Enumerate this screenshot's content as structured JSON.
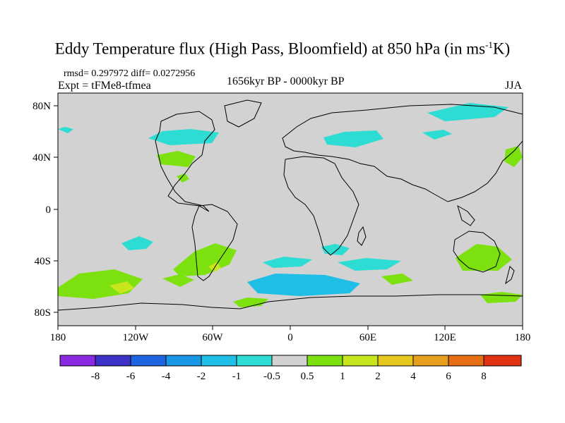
{
  "title": {
    "main": "Eddy Temperature flux (High Pass, Bloomfield) at 850 hPa (in ms",
    "superscript": "-1",
    "unit_tail": "K)"
  },
  "stats_line": "rmsd= 0.297972 diff= 0.0272956",
  "experiment_line": "Expt = tFMe8-tfmea",
  "period": "1656kyr BP - 0000kyr BP",
  "season": "JJA",
  "axes": {
    "lat_labels": [
      "80N",
      "40N",
      "0",
      "40S",
      "80S"
    ],
    "lon_labels": [
      "180",
      "120W",
      "60W",
      "0",
      "60E",
      "120E",
      "180"
    ]
  },
  "colorbar": {
    "colors": [
      "#8a2be2",
      "#3c32c8",
      "#1e64e1",
      "#1996e6",
      "#1ebee6",
      "#2ddcd2",
      "#d2d2d2",
      "#7de10f",
      "#c8e61e",
      "#e6c81e",
      "#e6a01e",
      "#e66e14",
      "#e13214"
    ],
    "labels": [
      "-8",
      "-6",
      "-4",
      "-2",
      "-1",
      "-0.5",
      "0.5",
      "1",
      "2",
      "4",
      "6",
      "8"
    ]
  },
  "map_colors": {
    "background": "#d2d2d2",
    "cyan": "#2ddcd2",
    "light_blue": "#1ebee6",
    "green": "#7de10f",
    "yellow_green": "#c8e61e",
    "coast": "#000000"
  }
}
